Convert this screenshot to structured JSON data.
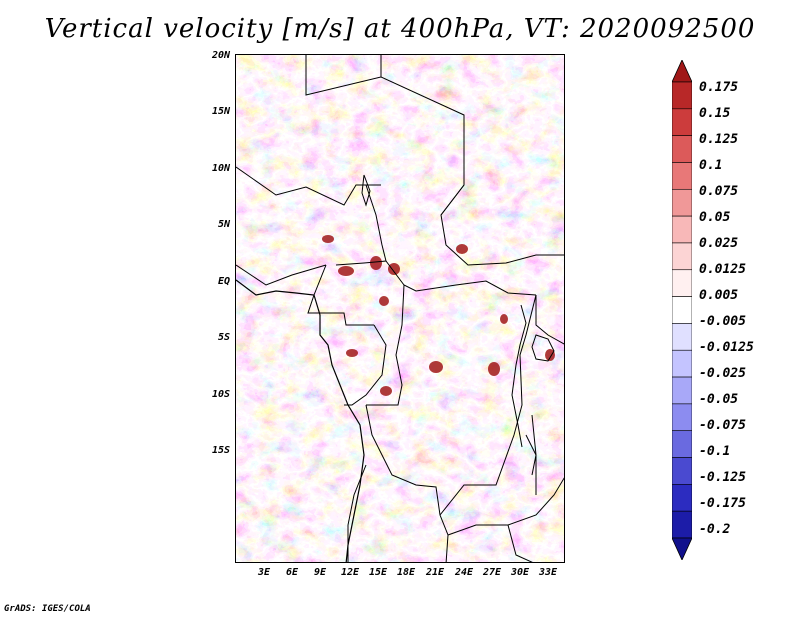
{
  "title": "Vertical velocity [m/s] at 400hPa, VT: 2020092500",
  "map": {
    "region": "Central Africa",
    "lat_labels": [
      "20N",
      "15N",
      "10N",
      "5N",
      "EQ",
      "5S",
      "10S",
      "15S"
    ],
    "lon_labels": [
      "3E",
      "6E",
      "9E",
      "12E",
      "15E",
      "18E",
      "21E",
      "24E",
      "27E",
      "30E",
      "33E"
    ]
  },
  "colorbar": {
    "labels": [
      "0.175",
      "0.15",
      "0.125",
      "0.1",
      "0.075",
      "0.05",
      "0.025",
      "0.0125",
      "0.005",
      "-0.005",
      "-0.0125",
      "-0.025",
      "-0.05",
      "-0.075",
      "-0.1",
      "-0.125",
      "-0.175",
      "-0.2"
    ],
    "colors": [
      "#a01818",
      "#b82828",
      "#cc3c3c",
      "#dc5a5a",
      "#e87878",
      "#f09898",
      "#f8b8b8",
      "#fcd4d4",
      "#fff0f0",
      "#ffffff",
      "#e0e0ff",
      "#c4c4ff",
      "#a8a8f8",
      "#8c8cf0",
      "#6a6ae0",
      "#4a4ad0",
      "#2c2cc0",
      "#1c1ca8",
      "#10108c"
    ]
  },
  "footer": "GrADS: IGES/COLA"
}
